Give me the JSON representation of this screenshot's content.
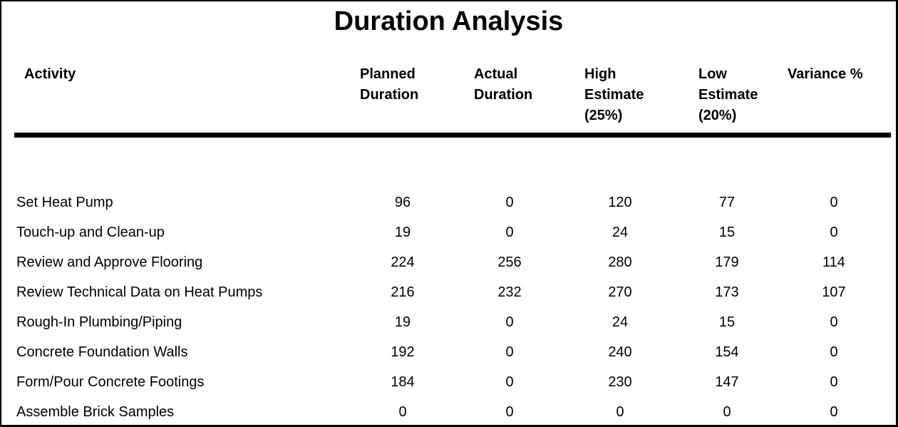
{
  "title": "Duration Analysis",
  "colors": {
    "text": "#000000",
    "background": "#ffffff",
    "rule": "#000000"
  },
  "table": {
    "columns": [
      {
        "id": "activity",
        "label": "Activity"
      },
      {
        "id": "planned",
        "label": "Planned\nDuration"
      },
      {
        "id": "actual",
        "label": "Actual\nDuration"
      },
      {
        "id": "high",
        "label": "High\nEstimate\n(25%)"
      },
      {
        "id": "low",
        "label": "Low\nEstimate\n(20%)"
      },
      {
        "id": "variance",
        "label": "Variance %"
      }
    ],
    "rows": [
      {
        "activity": "Set Heat Pump",
        "planned": "96",
        "actual": "0",
        "high": "120",
        "low": "77",
        "variance": "0"
      },
      {
        "activity": "Touch-up and Clean-up",
        "planned": "19",
        "actual": "0",
        "high": "24",
        "low": "15",
        "variance": "0"
      },
      {
        "activity": "Review and Approve Flooring",
        "planned": "224",
        "actual": "256",
        "high": "280",
        "low": "179",
        "variance": "114"
      },
      {
        "activity": "Review Technical Data on Heat Pumps",
        "planned": "216",
        "actual": "232",
        "high": "270",
        "low": "173",
        "variance": "107"
      },
      {
        "activity": "Rough-In Plumbing/Piping",
        "planned": "19",
        "actual": "0",
        "high": "24",
        "low": "15",
        "variance": "0"
      },
      {
        "activity": "Concrete Foundation Walls",
        "planned": "192",
        "actual": "0",
        "high": "240",
        "low": "154",
        "variance": "0"
      },
      {
        "activity": "Form/Pour Concrete Footings",
        "planned": "184",
        "actual": "0",
        "high": "230",
        "low": "147",
        "variance": "0"
      },
      {
        "activity": "Assemble Brick Samples",
        "planned": "0",
        "actual": "0",
        "high": "0",
        "low": "0",
        "variance": "0"
      }
    ]
  }
}
